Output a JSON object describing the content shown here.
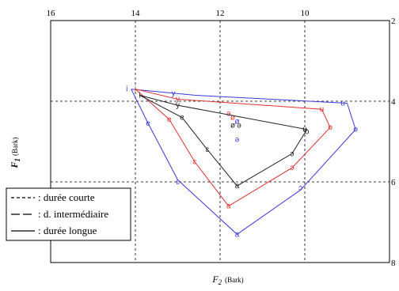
{
  "chart_data": {
    "type": "scatter",
    "title": "",
    "xlabel": "F",
    "xlabel_sub": "2",
    "xlabel_unit": "(Bark)",
    "ylabel": "F",
    "ylabel_sub": "1",
    "ylabel_unit": "(Bark)",
    "xlim": [
      16,
      8
    ],
    "ylim": [
      2,
      8
    ],
    "x_reversed": true,
    "y_reversed": true,
    "x_ticks": [
      "16",
      "14",
      "12",
      "10"
    ],
    "y_ticks": [
      "2",
      "4",
      "6",
      "8"
    ],
    "grid": "dashed at tick values",
    "legend_placement": "bottom-left",
    "legend": [
      {
        "label": ": durée courte",
        "dash": "short"
      },
      {
        "label": ": d. intermédiaire",
        "dash": "long"
      },
      {
        "label": ": durée longue",
        "dash": "solid"
      }
    ],
    "series": [
      {
        "color": "#3a3adf",
        "polygon": [
          {
            "x": 14.1,
            "y": 3.7
          },
          {
            "x": 12.6,
            "y": 3.85
          },
          {
            "x": 9.0,
            "y": 4.05
          },
          {
            "x": 8.8,
            "y": 4.7
          },
          {
            "x": 10.1,
            "y": 6.2
          },
          {
            "x": 11.6,
            "y": 7.3
          },
          {
            "x": 13.0,
            "y": 5.95
          },
          {
            "x": 13.7,
            "y": 4.55
          },
          {
            "x": 14.1,
            "y": 3.7
          }
        ],
        "points": [
          {
            "x": 14.2,
            "y": 3.7,
            "label": "i"
          },
          {
            "x": 13.1,
            "y": 3.8,
            "label": "y"
          },
          {
            "x": 9.1,
            "y": 4.05,
            "label": "u"
          },
          {
            "x": 8.8,
            "y": 4.7,
            "label": "o"
          },
          {
            "x": 10.1,
            "y": 6.15,
            "label": "ɔ"
          },
          {
            "x": 11.6,
            "y": 7.3,
            "label": "a"
          },
          {
            "x": 13.0,
            "y": 6.0,
            "label": "ɛ"
          },
          {
            "x": 13.7,
            "y": 4.55,
            "label": "e"
          },
          {
            "x": 11.6,
            "y": 4.5,
            "label": "ø"
          },
          {
            "x": 11.6,
            "y": 4.95,
            "label": "ə"
          }
        ]
      },
      {
        "color": "#e03030",
        "polygon": [
          {
            "x": 14.0,
            "y": 3.7
          },
          {
            "x": 13.0,
            "y": 3.95
          },
          {
            "x": 9.6,
            "y": 4.2
          },
          {
            "x": 9.4,
            "y": 4.65
          },
          {
            "x": 10.3,
            "y": 5.65
          },
          {
            "x": 11.8,
            "y": 6.6
          },
          {
            "x": 12.6,
            "y": 5.5
          },
          {
            "x": 13.2,
            "y": 4.45
          },
          {
            "x": 14.0,
            "y": 3.7
          }
        ],
        "points": [
          {
            "x": 14.0,
            "y": 3.7,
            "label": "i"
          },
          {
            "x": 13.0,
            "y": 3.95,
            "label": "y"
          },
          {
            "x": 9.6,
            "y": 4.2,
            "label": "u"
          },
          {
            "x": 9.4,
            "y": 4.65,
            "label": "o"
          },
          {
            "x": 10.3,
            "y": 5.65,
            "label": "ɔ"
          },
          {
            "x": 11.8,
            "y": 6.6,
            "label": "a"
          },
          {
            "x": 12.6,
            "y": 5.5,
            "label": "ɛ"
          },
          {
            "x": 13.2,
            "y": 4.45,
            "label": "e"
          },
          {
            "x": 11.7,
            "y": 4.4,
            "label": "ø"
          },
          {
            "x": 11.8,
            "y": 4.3,
            "label": "ə"
          }
        ]
      },
      {
        "color": "#222222",
        "polygon": [
          {
            "x": 13.9,
            "y": 3.85
          },
          {
            "x": 13.0,
            "y": 4.1
          },
          {
            "x": 9.95,
            "y": 4.7
          },
          {
            "x": 10.3,
            "y": 5.3
          },
          {
            "x": 11.6,
            "y": 6.1
          },
          {
            "x": 12.3,
            "y": 5.2
          },
          {
            "x": 12.9,
            "y": 4.4
          },
          {
            "x": 13.9,
            "y": 3.85
          }
        ],
        "points": [
          {
            "x": 13.9,
            "y": 3.85,
            "label": "i"
          },
          {
            "x": 13.0,
            "y": 4.1,
            "label": "y"
          },
          {
            "x": 10.0,
            "y": 4.7,
            "label": "u"
          },
          {
            "x": 9.95,
            "y": 4.75,
            "label": "o"
          },
          {
            "x": 10.3,
            "y": 5.3,
            "label": "ɔ"
          },
          {
            "x": 11.6,
            "y": 6.1,
            "label": "a"
          },
          {
            "x": 12.3,
            "y": 5.2,
            "label": "ɛ"
          },
          {
            "x": 12.9,
            "y": 4.4,
            "label": "e"
          },
          {
            "x": 11.7,
            "y": 4.6,
            "label": "ø"
          },
          {
            "x": 11.55,
            "y": 4.6,
            "label": "ə"
          }
        ]
      }
    ]
  }
}
